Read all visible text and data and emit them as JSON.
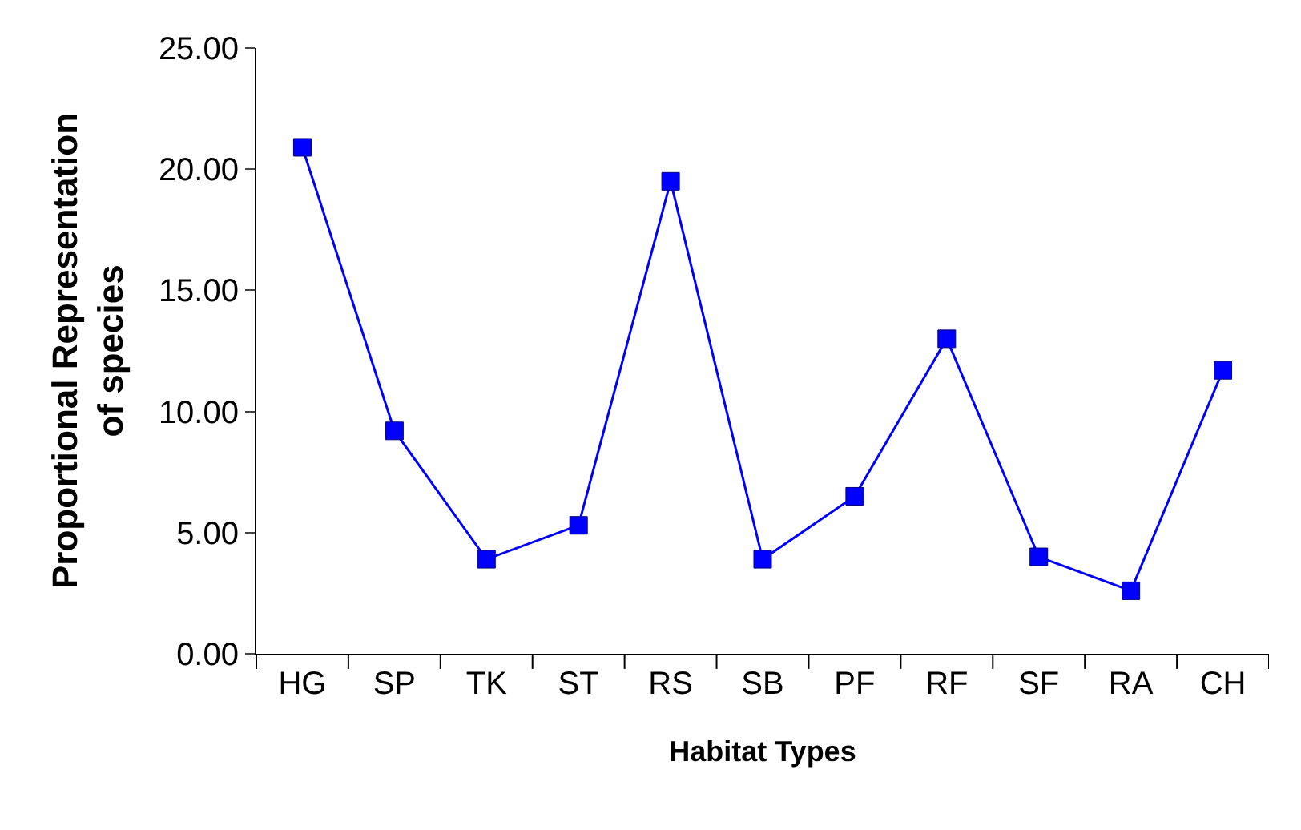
{
  "chart_data": {
    "type": "line",
    "xlabel": "Habitat Types",
    "ylabel": "Proportional Representation\nof species",
    "categories": [
      "HG",
      "SP",
      "TK",
      "ST",
      "RS",
      "SB",
      "PF",
      "RF",
      "SF",
      "RA",
      "CH"
    ],
    "series": [
      {
        "color": "#0000ff",
        "values": [
          20.9,
          9.2,
          3.9,
          5.3,
          19.5,
          3.9,
          6.5,
          13.0,
          4.0,
          2.6,
          11.7
        ]
      }
    ],
    "ylim": [
      0,
      25
    ],
    "yticks": [
      {
        "value": 0,
        "label": "0.00"
      },
      {
        "value": 5,
        "label": "5.00"
      },
      {
        "value": 10,
        "label": "10.00"
      },
      {
        "value": 15,
        "label": "15.00"
      },
      {
        "value": 20,
        "label": "20.00"
      },
      {
        "value": 25,
        "label": "25.00"
      }
    ],
    "marker": "square",
    "line_style": "solid"
  }
}
